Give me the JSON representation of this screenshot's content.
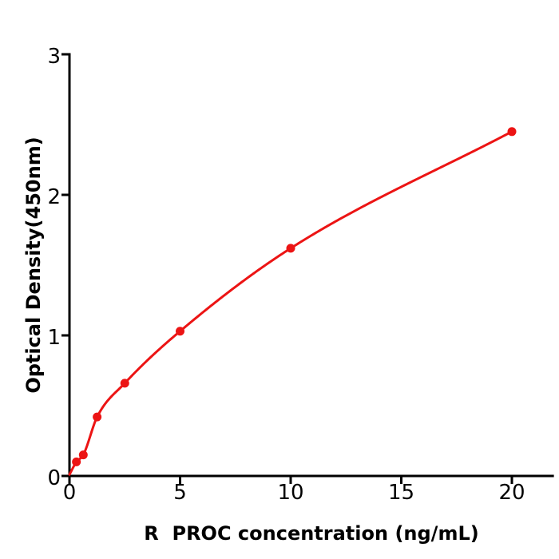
{
  "chart_data": {
    "type": "scatter",
    "has_fit_curve": true,
    "x": [
      0.313,
      0.625,
      1.25,
      2.5,
      5,
      10,
      20
    ],
    "y": [
      0.1,
      0.15,
      0.42,
      0.66,
      1.03,
      1.62,
      2.45
    ],
    "curve_start": {
      "x": 0,
      "y": 0.01
    },
    "title": "",
    "xlabel": "R  PROC concentration (ng/mL)",
    "ylabel": "Optical Density(450nm)",
    "xticks": [
      0,
      5,
      10,
      15,
      20
    ],
    "yticks": [
      0,
      1,
      2,
      3
    ],
    "xlim": [
      0,
      21.9
    ],
    "ylim": [
      0,
      3
    ],
    "grid": false,
    "point_color": "#ec1414",
    "line_color": "#ec1414",
    "axis_color": "#000000",
    "background": "#ffffff"
  }
}
